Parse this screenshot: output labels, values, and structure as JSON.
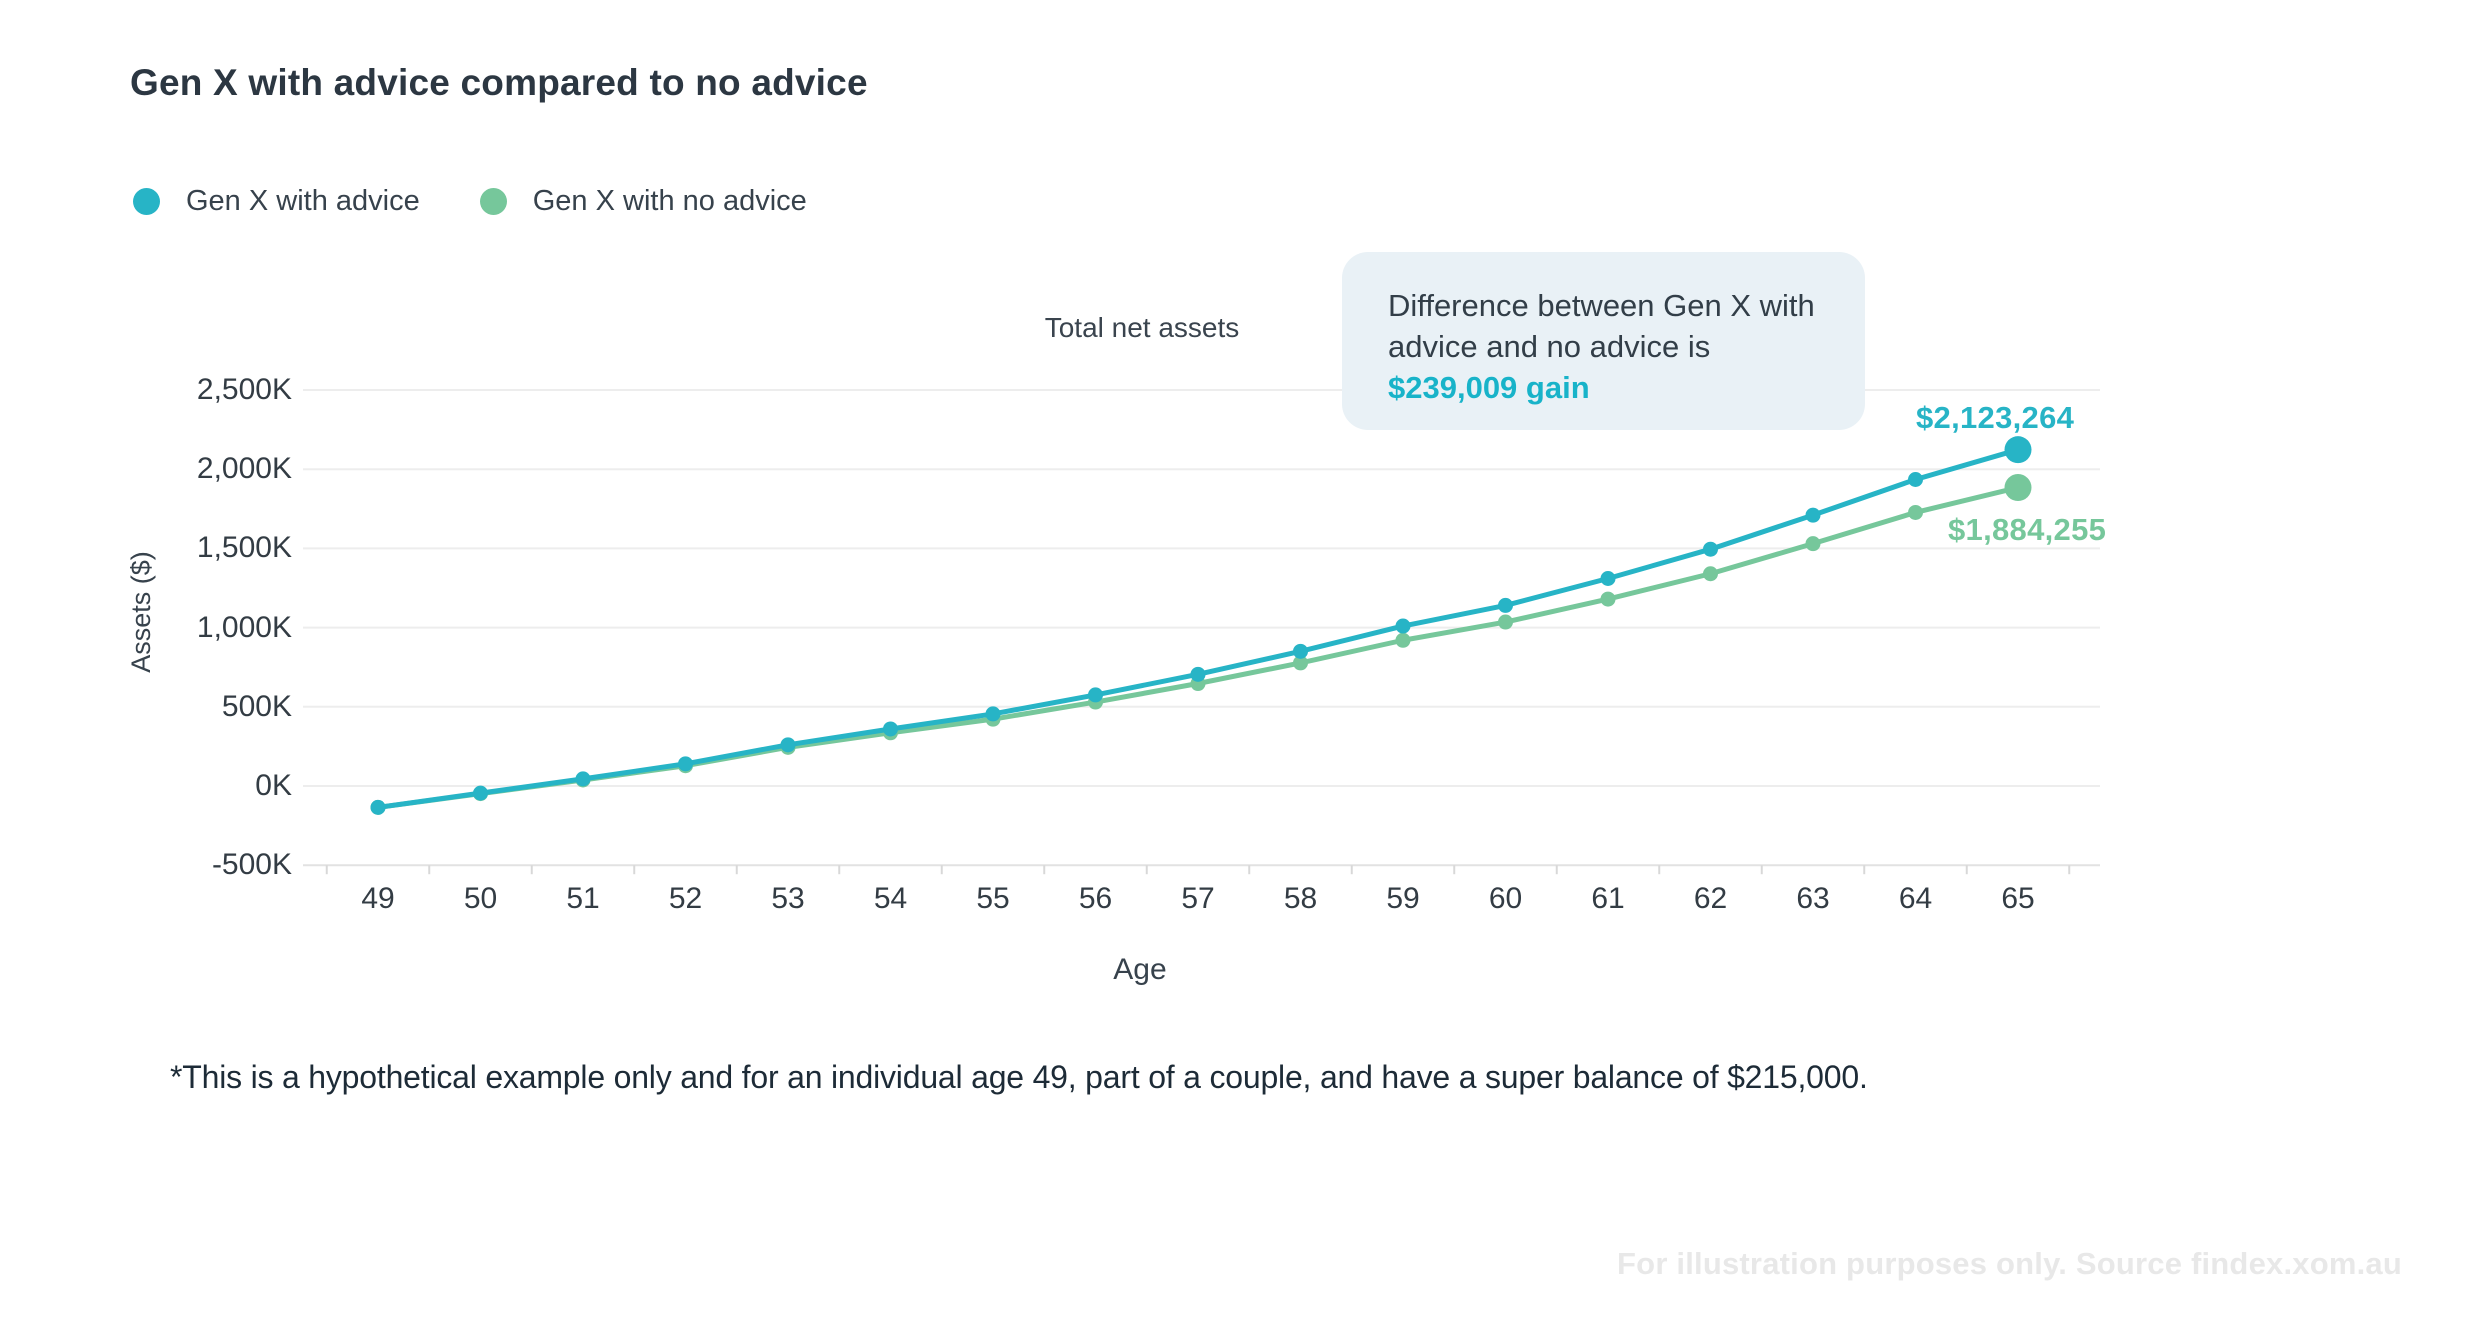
{
  "title": "Gen X with advice compared to no advice",
  "legend": {
    "items": [
      {
        "label": "Gen X with advice",
        "color": "#27b4c6"
      },
      {
        "label": "Gen X with no advice",
        "color": "#76c79b"
      }
    ]
  },
  "annotation": {
    "text": "Difference between Gen X with advice and no advice is ",
    "highlight": "$239,009 gain",
    "highlight_color": "#18b3c9"
  },
  "chart_data": {
    "type": "line",
    "title": "Total net assets",
    "xlabel": "Age",
    "ylabel": "Assets ($)",
    "x": [
      49,
      50,
      51,
      52,
      53,
      54,
      55,
      56,
      57,
      58,
      59,
      60,
      61,
      62,
      63,
      64,
      65
    ],
    "series": [
      {
        "name": "Gen X with advice",
        "color": "#27b4c6",
        "values_thousands": [
          -135,
          -45,
          45,
          140,
          260,
          360,
          455,
          575,
          705,
          850,
          1010,
          1140,
          1310,
          1495,
          1710,
          1935,
          2123.264
        ],
        "end_label": "$2,123,264",
        "end_value": 2123264
      },
      {
        "name": "Gen X with no advice",
        "color": "#76c79b",
        "values_thousands": [
          -135,
          -48,
          38,
          128,
          244,
          336,
          422,
          530,
          647,
          777,
          920,
          1035,
          1180,
          1340,
          1530,
          1727,
          1884.255
        ],
        "end_label": "$1,884,255",
        "end_value": 1884255
      }
    ],
    "y_ticks_thousands": [
      2500,
      2000,
      1500,
      1000,
      500,
      0,
      -500
    ],
    "y_tick_labels": [
      "2,500K",
      "2,000K",
      "1,500K",
      "1,000K",
      "500K",
      "0K",
      "-500K"
    ],
    "ylim_thousands": [
      -500,
      2500
    ],
    "grid": true,
    "legend_position": "top-left",
    "difference_gain": 239009
  },
  "footnote": "*This is a hypothetical example only and for an individual age 49, part of a couple, and have a super balance of $215,000.",
  "watermark": "For illustration purposes only. Source findex.xom.au"
}
